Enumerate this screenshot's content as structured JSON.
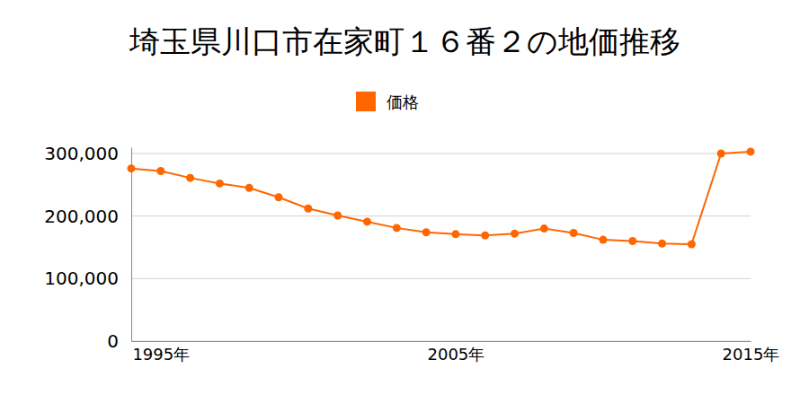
{
  "chart_data": {
    "type": "line",
    "title": "埼玉県川口市在家町１６番２の地価推移",
    "x": [
      1994,
      1995,
      1996,
      1997,
      1998,
      1999,
      2000,
      2001,
      2002,
      2003,
      2004,
      2005,
      2006,
      2007,
      2008,
      2009,
      2010,
      2011,
      2012,
      2013,
      2014,
      2015
    ],
    "series": [
      {
        "name": "価格",
        "color": "#ff6600",
        "marker": "circle",
        "values": [
          276000,
          272000,
          261000,
          252000,
          245000,
          230000,
          212000,
          201000,
          191000,
          181000,
          174000,
          171000,
          169000,
          172000,
          180000,
          173000,
          162000,
          160000,
          156000,
          155000,
          300000,
          303000
        ]
      }
    ],
    "xlim": [
      1994,
      2015
    ],
    "xticks": [
      {
        "value": 1995,
        "label": "1995年"
      },
      {
        "value": 2005,
        "label": "2005年"
      },
      {
        "value": 2015,
        "label": "2015年"
      }
    ],
    "ylim": [
      0,
      310000
    ],
    "yticks": [
      0,
      {
        "value": 100000,
        "label": "100,000"
      },
      {
        "value": 200000,
        "label": "200,000"
      },
      {
        "value": 300000,
        "label": "300,000"
      }
    ],
    "grid": true,
    "legend": "top"
  }
}
